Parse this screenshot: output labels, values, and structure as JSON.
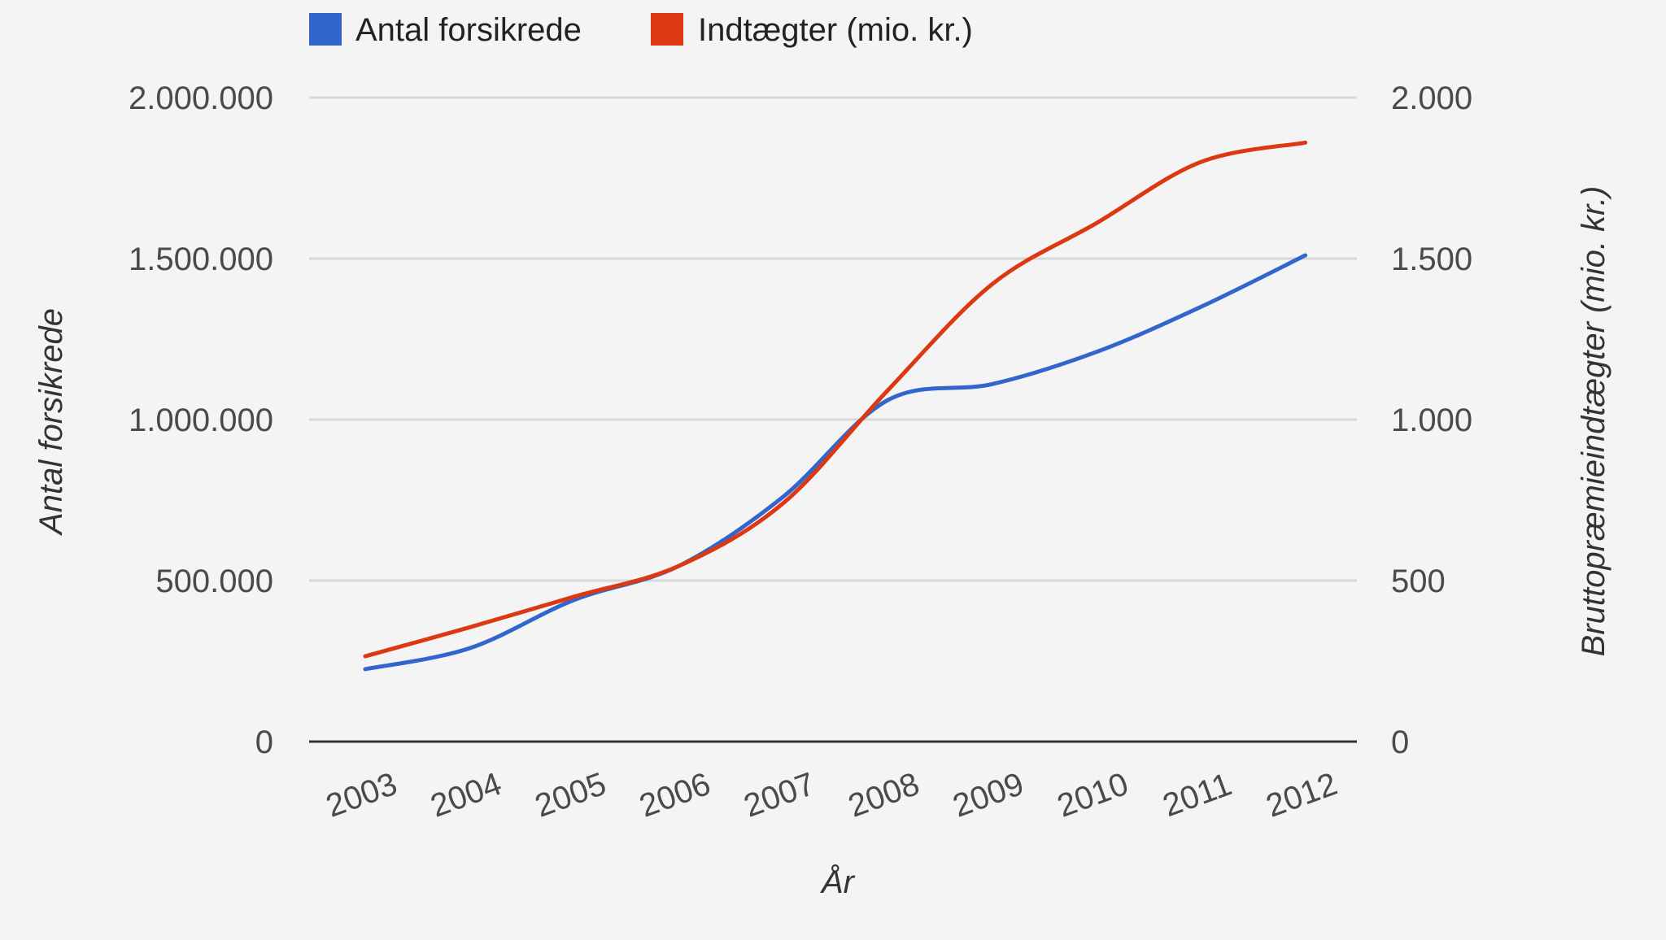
{
  "chart_data": {
    "type": "line",
    "title": "",
    "xlabel": "År",
    "ylabel_left": "Antal forsikrede",
    "ylabel_right": "Bruttopræmieindtægter (mio. kr.)",
    "legend_position": "top-left",
    "grid": true,
    "categories": [
      "2003",
      "2004",
      "2005",
      "2006",
      "2007",
      "2008",
      "2009",
      "2010",
      "2011",
      "2012"
    ],
    "y_left": {
      "ylim": [
        0,
        2000000
      ],
      "ticks": [
        0,
        500000,
        1000000,
        1500000,
        2000000
      ],
      "tick_labels": [
        "0",
        "500.000",
        "1.000.000",
        "1.500.000",
        "2.000.000"
      ]
    },
    "y_right": {
      "ylim": [
        0,
        2000
      ],
      "ticks": [
        0,
        500,
        1000,
        1500,
        2000
      ],
      "tick_labels": [
        "0",
        "500",
        "1.000",
        "1.500",
        "2.000"
      ]
    },
    "series": [
      {
        "name": "Antal forsikrede",
        "axis": "left",
        "color": "#3366cc",
        "values": [
          225000,
          290000,
          440000,
          545000,
          760000,
          1060000,
          1110000,
          1210000,
          1350000,
          1510000
        ]
      },
      {
        "name": "Indtægter (mio. kr.)",
        "axis": "right",
        "color": "#dc3912",
        "values": [
          265,
          355,
          450,
          545,
          740,
          1090,
          1420,
          1610,
          1800,
          1860
        ]
      }
    ]
  }
}
